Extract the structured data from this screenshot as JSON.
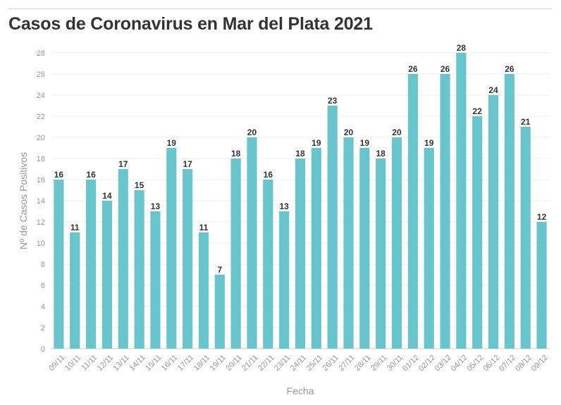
{
  "chart_data": {
    "type": "bar",
    "title": "Casos de Coronavirus en Mar del Plata 2021",
    "xlabel": "Fecha",
    "ylabel": "Nº de Casos Positivos",
    "ylim": [
      0,
      28
    ],
    "y_ticks": [
      0,
      2,
      4,
      6,
      8,
      10,
      12,
      14,
      16,
      18,
      20,
      22,
      24,
      26,
      28
    ],
    "grid": true,
    "bar_color": "#67c5cb",
    "categories": [
      "09/11",
      "10/11",
      "11/11",
      "12/11",
      "13/11",
      "14/11",
      "15/11",
      "16/11",
      "17/11",
      "18/11",
      "19/11",
      "20/11",
      "21/11",
      "22/11",
      "23/11",
      "24/11",
      "25/11",
      "26/11",
      "27/11",
      "28/11",
      "29/11",
      "30/11",
      "01/12",
      "02/12",
      "03/12",
      "04/12",
      "05/12",
      "06/12",
      "07/12",
      "08/12",
      "09/12"
    ],
    "values": [
      16,
      11,
      16,
      14,
      17,
      15,
      13,
      19,
      17,
      11,
      7,
      18,
      20,
      16,
      13,
      18,
      19,
      23,
      20,
      19,
      18,
      20,
      26,
      19,
      26,
      28,
      22,
      24,
      26,
      21,
      12
    ]
  }
}
